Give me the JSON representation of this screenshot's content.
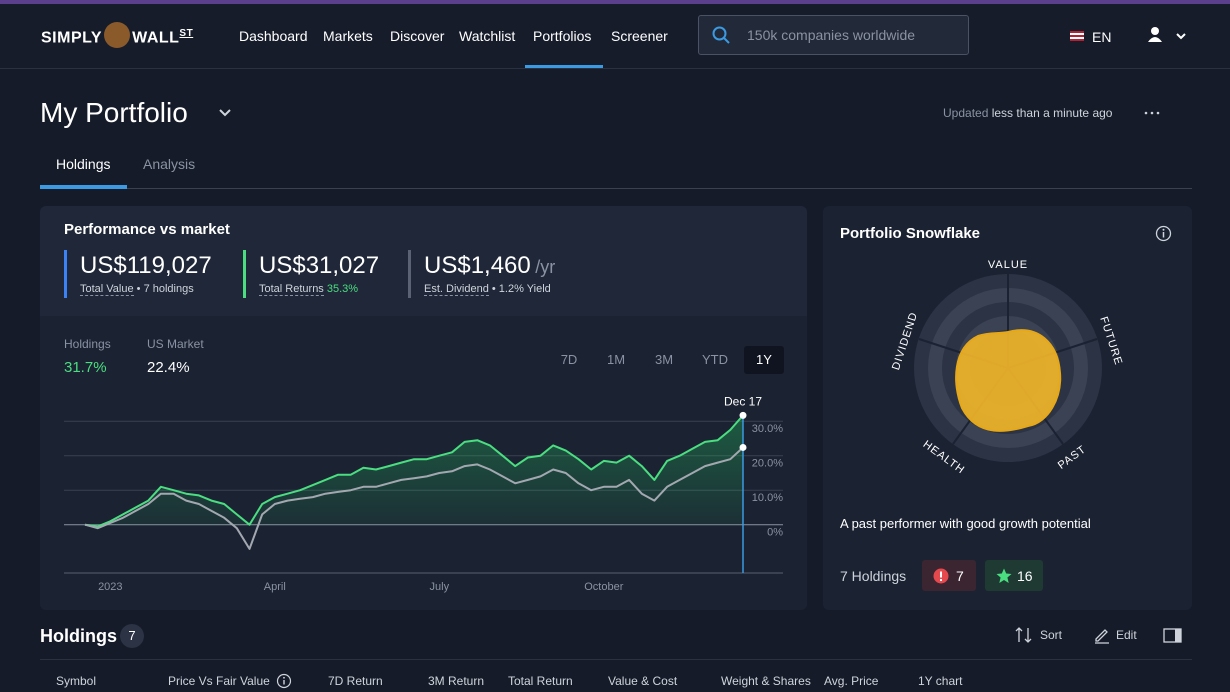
{
  "nav": {
    "logo_left": "SIMPLY",
    "logo_right": "WALL",
    "logo_sup": "ST",
    "links": [
      "Dashboard",
      "Markets",
      "Discover",
      "Watchlist",
      "Portfolios",
      "Screener"
    ],
    "search_placeholder": "150k companies worldwide",
    "language": "EN"
  },
  "header": {
    "title": "My Portfolio",
    "updated_prefix": "Updated",
    "updated_time": "less than a minute ago",
    "tabs": [
      "Holdings",
      "Analysis"
    ]
  },
  "performance": {
    "title": "Performance vs market",
    "stats": [
      {
        "value": "US$119,027",
        "label": "Total Value",
        "extra": "• 7 holdings"
      },
      {
        "value": "US$31,027",
        "label": "Total Returns",
        "extra": "35.3%"
      },
      {
        "value": "US$1,460",
        "unit": "/yr",
        "label": "Est. Dividend",
        "extra": "• 1.2% Yield"
      }
    ],
    "comparison_values": [
      "31.7%",
      "22.4%"
    ],
    "ranges": [
      "7D",
      "1M",
      "3M",
      "YTD",
      "1Y"
    ]
  },
  "chart_data": {
    "type": "line",
    "categories": [
      null,
      null,
      "2023",
      null,
      null,
      null,
      null,
      null,
      null,
      null,
      null,
      null,
      null,
      null,
      null,
      "April",
      null,
      null,
      null,
      null,
      null,
      null,
      null,
      null,
      null,
      null,
      null,
      null,
      "July",
      null,
      null,
      null,
      null,
      null,
      null,
      null,
      null,
      null,
      null,
      null,
      null,
      "October",
      null,
      null,
      null,
      null,
      null,
      null,
      null,
      null,
      null,
      null,
      null
    ],
    "series": [
      {
        "name": "Holdings",
        "color": "#4ade80",
        "values": [
          0,
          -0.5,
          1,
          3,
          5,
          7,
          11,
          10,
          9,
          8.5,
          7,
          6,
          3,
          0,
          6,
          8,
          9,
          10,
          11.5,
          13,
          14.5,
          14.5,
          16.5,
          16,
          17,
          18,
          19,
          19,
          20,
          21,
          24,
          24.5,
          23,
          20,
          17,
          19.5,
          20,
          23,
          21.5,
          19,
          16,
          18.5,
          18,
          20,
          17,
          13,
          18.5,
          20,
          22,
          24,
          24.5,
          27.5,
          31.7
        ]
      },
      {
        "name": "US Market",
        "color": "#a3a8b0",
        "values": [
          0,
          -1,
          0.5,
          2,
          4,
          6,
          9,
          9,
          7,
          6,
          4,
          2,
          -1,
          -7,
          3,
          6,
          7,
          7.5,
          8,
          9,
          9.5,
          10,
          11,
          11,
          12,
          13,
          13.5,
          14,
          15,
          15.5,
          17,
          17.5,
          16,
          14,
          12,
          13,
          14,
          16,
          15,
          12,
          10,
          11,
          11,
          13,
          9,
          7,
          11,
          13,
          15,
          17,
          18,
          19,
          22.4
        ]
      }
    ],
    "annotation": "Dec 17",
    "ylim": [
      -14,
      35
    ],
    "yticks": [
      {
        "value": 0,
        "label": "0%"
      },
      {
        "value": 10,
        "label": "10.0%"
      },
      {
        "value": 20,
        "label": "20.0%"
      },
      {
        "value": 30,
        "label": "30.0%"
      }
    ],
    "grid": true
  },
  "snowflake": {
    "title": "Portfolio Snowflake",
    "axes": [
      "VALUE",
      "FUTURE",
      "PAST",
      "HEALTH",
      "DIVIDEND"
    ],
    "description": "A past performer with good growth potential",
    "holdings_label": "7 Holdings",
    "risks": "7",
    "rewards": "16"
  },
  "holdings": {
    "title": "Holdings",
    "count": "7",
    "sort": "Sort",
    "edit": "Edit",
    "columns": [
      "Symbol",
      "Price Vs Fair Value",
      "7D Return",
      "3M Return",
      "Total Return",
      "Value & Cost",
      "Weight & Shares",
      "Avg. Price",
      "1Y chart"
    ]
  }
}
